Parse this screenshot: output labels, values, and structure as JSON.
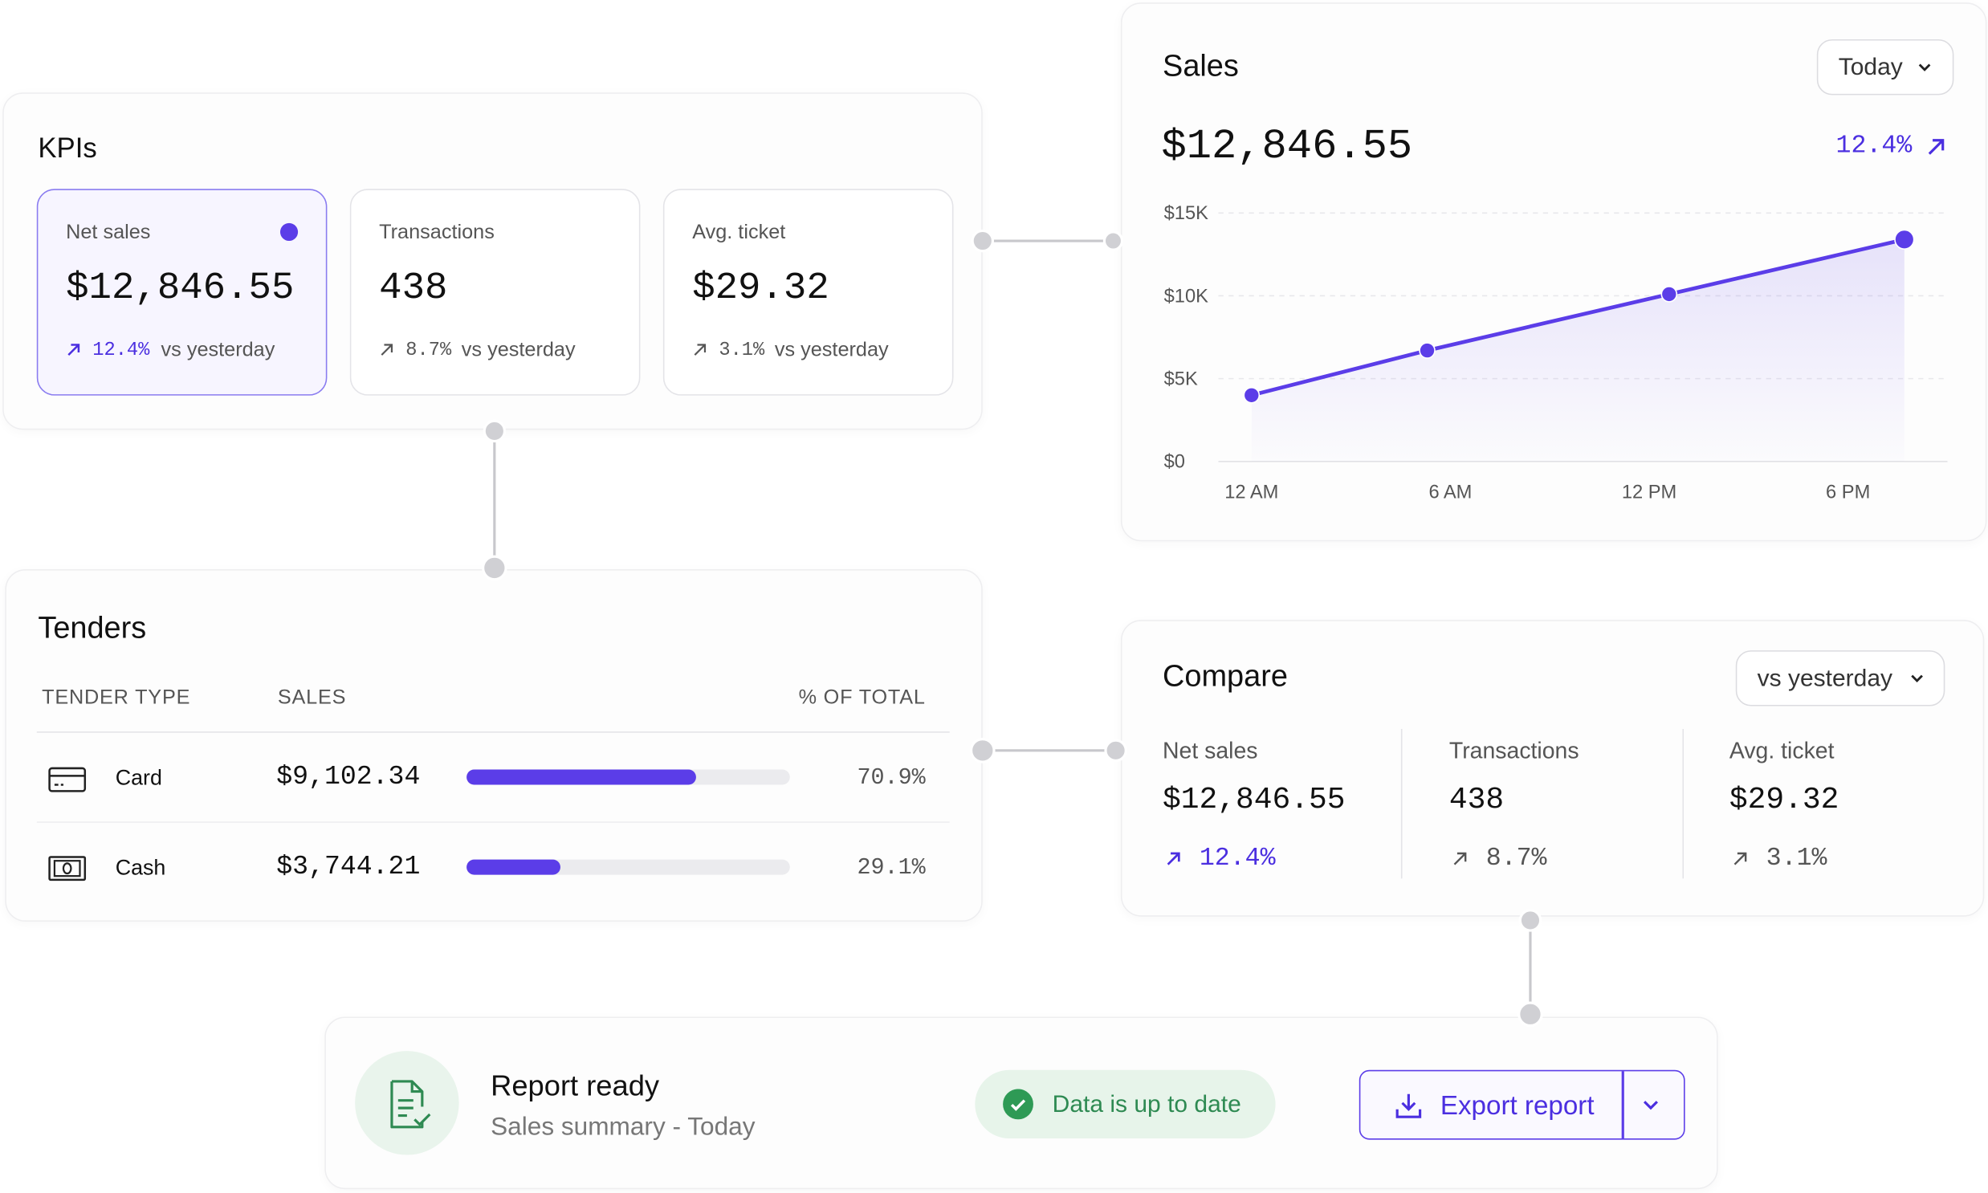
{
  "kpis": {
    "title": "KPIs",
    "cards": [
      {
        "label": "Net sales",
        "value": "$12,846.55",
        "delta": "12.4%",
        "note": "vs yesterday"
      },
      {
        "label": "Transactions",
        "value": "438",
        "delta": "8.7%",
        "note": "vs yesterday"
      },
      {
        "label": "Avg. ticket",
        "value": "$29.32",
        "delta": "3.1%",
        "note": "vs yesterday"
      }
    ]
  },
  "sales": {
    "title": "Sales",
    "range": "Today",
    "total": "$12,846.55",
    "change": "12.4%"
  },
  "chart_data": {
    "type": "line",
    "color": "#5b3de8",
    "x": [
      0,
      5.3,
      12.6,
      19.7
    ],
    "values": [
      4000,
      6700,
      10100,
      13400
    ],
    "xlim": [
      -1,
      21
    ],
    "xticks": [
      {
        "value": 0,
        "label": "12 AM"
      },
      {
        "value": 6,
        "label": "6 AM"
      },
      {
        "value": 12,
        "label": "12 PM"
      },
      {
        "value": 18,
        "label": "6 PM"
      }
    ],
    "ylim": [
      0,
      15000
    ],
    "yticks": [
      {
        "value": 0,
        "label": "$0"
      },
      {
        "value": 5000,
        "label": "$5K"
      },
      {
        "value": 10000,
        "label": "$10K"
      },
      {
        "value": 15000,
        "label": "$15K"
      }
    ],
    "grid": true
  },
  "tenders": {
    "title": "Tenders",
    "columns": [
      "TENDER TYPE",
      "SALES",
      "% OF TOTAL"
    ],
    "share_range": [
      0,
      100
    ],
    "rows": [
      {
        "type": "Card",
        "sales": "$9,102.34",
        "share": 70.9,
        "share_label": "70.9%"
      },
      {
        "type": "Cash",
        "sales": "$3,744.21",
        "share": 29.1,
        "share_label": "29.1%"
      }
    ]
  },
  "compare": {
    "title": "Compare",
    "range": "vs yesterday",
    "metrics": [
      {
        "label": "Net sales",
        "value": "$12,846.55",
        "delta": "12.4%"
      },
      {
        "label": "Transactions",
        "value": "438",
        "delta": "8.7%"
      },
      {
        "label": "Avg. ticket",
        "value": "$29.32",
        "delta": "3.1%"
      }
    ]
  },
  "report": {
    "title": "Report ready",
    "subtitle": "Sales summary - Today",
    "status": "Data is up to date",
    "action": "Export report"
  }
}
